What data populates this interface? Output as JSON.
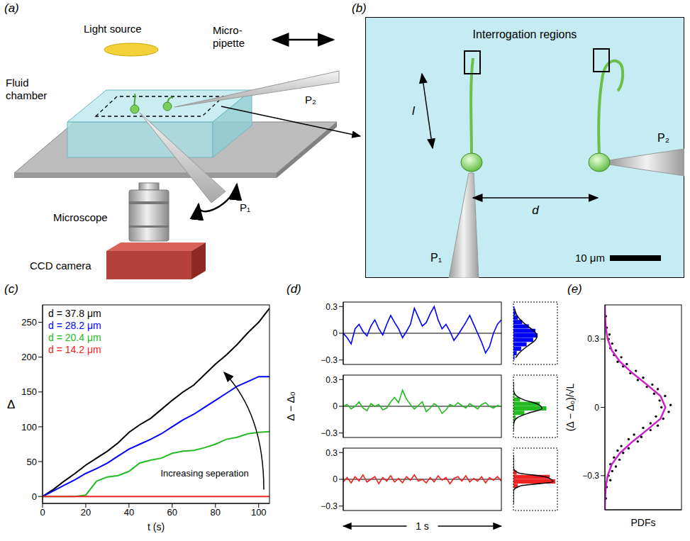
{
  "diagram_a": {
    "label": "(a)",
    "light_source": "Light source",
    "micropipette": [
      "Micro-",
      "pipette"
    ],
    "fluid_chamber": [
      "Fluid",
      "chamber"
    ],
    "pipettes": [
      "P₁",
      "P₂"
    ],
    "microscope": "Microscope",
    "camera": "CCD camera"
  },
  "diagram_b": {
    "label": "(b)",
    "title": "Interrogation regions",
    "length": "l",
    "separation": "d",
    "pipettes": [
      "P₁",
      "P₂"
    ],
    "scale_bar": "10 μm"
  },
  "chart_data": [
    {
      "label": "(c)",
      "type": "line",
      "x_label": "t (s)",
      "y_label": "Δ",
      "x": [
        0,
        5,
        10,
        15,
        20,
        25,
        30,
        35,
        40,
        45,
        50,
        55,
        60,
        65,
        70,
        75,
        80,
        85,
        90,
        95,
        100,
        105
      ],
      "xlim": [
        0,
        105
      ],
      "xticks": [
        0,
        20,
        40,
        60,
        80,
        100
      ],
      "ylim": [
        -10,
        275
      ],
      "yticks": [
        0,
        50,
        100,
        150,
        200,
        250
      ],
      "legend": "upper left",
      "annotation": "Increasing seperation",
      "series": [
        {
          "name": "d = 37.8 μm",
          "color": "#000000",
          "values": [
            0,
            10,
            22,
            33,
            45,
            55,
            65,
            77,
            92,
            103,
            112,
            125,
            138,
            150,
            160,
            175,
            190,
            203,
            218,
            235,
            250,
            270
          ]
        },
        {
          "name": "d = 28.2 μm",
          "color": "#0000ff",
          "values": [
            0,
            8,
            16,
            24,
            33,
            40,
            48,
            58,
            68,
            75,
            82,
            90,
            100,
            110,
            118,
            128,
            138,
            148,
            158,
            165,
            172,
            172
          ]
        },
        {
          "name": "d = 20.4 μm",
          "color": "#22bb22",
          "values": [
            0,
            0,
            0,
            0,
            2,
            22,
            28,
            30,
            36,
            48,
            52,
            55,
            62,
            65,
            66,
            70,
            75,
            82,
            85,
            90,
            92,
            93
          ]
        },
        {
          "name": "d = 14.2 μm",
          "color": "#ee2222",
          "values": [
            0,
            0,
            0,
            0,
            0,
            0,
            0,
            0,
            0,
            0,
            0,
            0,
            0,
            0,
            0,
            0,
            0,
            0,
            0,
            0,
            0,
            0
          ]
        }
      ]
    },
    {
      "label": "(d)",
      "type": "line",
      "y_label": "Δ − Δ₀",
      "x_label": "1 s",
      "tick_labels": "y",
      "x": [
        0,
        0.025,
        0.05,
        0.075,
        0.1,
        0.125,
        0.15,
        0.175,
        0.2,
        0.225,
        0.25,
        0.275,
        0.3,
        0.325,
        0.35,
        0.375,
        0.4,
        0.425,
        0.45,
        0.475,
        0.5,
        0.525,
        0.55,
        0.575,
        0.6,
        0.625,
        0.65,
        0.675,
        0.7,
        0.725,
        0.75,
        0.775,
        0.8,
        0.825,
        0.85,
        0.875,
        0.9,
        0.925,
        0.95,
        0.975,
        1
      ],
      "xlim": [
        0,
        1
      ],
      "ylim": [
        -0.35,
        0.35
      ],
      "yticks": [
        {
          "value": -0.3,
          "label": "−0.3"
        },
        0,
        0.3
      ],
      "series": [
        {
          "color": "#0000ff",
          "values": [
            0,
            -0.05,
            -0.12,
            0.05,
            0.1,
            0.02,
            -0.03,
            0.08,
            0.15,
            0.05,
            -0.02,
            0.1,
            0.2,
            0.12,
            0.05,
            -0.05,
            0.02,
            0.1,
            0.28,
            0.18,
            0.08,
            0.12,
            0.22,
            0.3,
            0.15,
            0.05,
            0.1,
            0.02,
            -0.08,
            -0.02,
            0.05,
            0.12,
            0.2,
            0.1,
            0,
            -0.1,
            -0.22,
            -0.15,
            0,
            0.1,
            0.15
          ],
          "histogram": {
            "tick_labels": false,
            "xlim": [
              0,
              40
            ],
            "bins": [
              -0.3,
              -0.25,
              -0.2,
              -0.15,
              -0.1,
              -0.05,
              0,
              0.05,
              0.1,
              0.15,
              0.2,
              0.25,
              0.3
            ],
            "counts": [
              1,
              2,
              4,
              8,
              14,
              20,
              22,
              18,
              12,
              7,
              3,
              1
            ],
            "fit": [
              1,
              2.3,
              4.6,
              8.5,
              13.5,
              18.5,
              21.5,
              20,
              15,
              9.5,
              5,
              2
            ],
            "fit_color": "#000000"
          }
        },
        {
          "color": "#22bb22",
          "values": [
            0,
            0.02,
            -0.03,
            0,
            0.05,
            -0.02,
            -0.05,
            0.03,
            0,
            0.02,
            -0.04,
            -0.02,
            0.05,
            0.1,
            0.04,
            0.18,
            0.08,
            0.02,
            -0.03,
            0.01,
            0.05,
            -0.06,
            -0.02,
            0.03,
            0,
            -0.08,
            -0.04,
            0.02,
            0,
            0.04,
            0.01,
            -0.02,
            0.03,
            0,
            -0.03,
            0.02,
            0.04,
            0,
            -0.02,
            0.01,
            0
          ],
          "histogram": {
            "tick_labels": false,
            "xlim": [
              0,
              40
            ],
            "bins": [
              -0.3,
              -0.25,
              -0.2,
              -0.15,
              -0.1,
              -0.05,
              0,
              0.05,
              0.1,
              0.15,
              0.2,
              0.25,
              0.3
            ],
            "counts": [
              0,
              0,
              0,
              1,
              6,
              24,
              30,
              10,
              2,
              1,
              0,
              0
            ],
            "fit": [
              0,
              0,
              0.2,
              2,
              9,
              22,
              26,
              14,
              4,
              0.6,
              0,
              0
            ],
            "fit_color": "#000000"
          }
        },
        {
          "color": "#ee2222",
          "values": [
            -0.03,
            0.02,
            -0.04,
            0.03,
            -0.02,
            0.05,
            -0.03,
            0,
            0.03,
            -0.05,
            0.02,
            -0.02,
            0.04,
            -0.03,
            0.01,
            -0.04,
            0.03,
            -0.01,
            0.05,
            -0.02,
            0,
            -0.04,
            0.02,
            -0.03,
            0.04,
            -0.01,
            0.02,
            -0.05,
            0.01,
            0.03,
            -0.02,
            0.04,
            -0.03,
            0.01,
            -0.02,
            0.03,
            -0.04,
            0.02,
            -0.01,
            0.03,
            -0.02
          ],
          "histogram": {
            "tick_labels": false,
            "xlim": [
              0,
              40
            ],
            "bins": [
              -0.3,
              -0.25,
              -0.2,
              -0.15,
              -0.1,
              -0.05,
              0,
              0.05,
              0.1,
              0.15,
              0.2,
              0.25,
              0.3
            ],
            "counts": [
              0,
              0,
              0,
              0,
              3,
              33,
              38,
              4,
              0,
              0,
              0,
              0
            ],
            "fit": [
              0,
              0,
              0,
              0.1,
              4,
              30,
              36,
              6,
              0.2,
              0,
              0,
              0
            ],
            "fit_color": "#000000"
          }
        }
      ]
    },
    {
      "label": "(e)",
      "type": "scatter",
      "y_label": "(Δ − Δ₀)/√L",
      "x_label": "PDFs",
      "tick_labels": "y",
      "xlim": [
        0,
        4.2
      ],
      "xticks": [],
      "ylim": [
        -0.45,
        0.45
      ],
      "yticks": [
        {
          "value": -0.3,
          "label": "−0.3"
        },
        0,
        0.3
      ],
      "series": [
        {
          "type": "scatter",
          "color": "#000000",
          "x": [
            0.05,
            0.1,
            0.3,
            0.2,
            0.4,
            0.6,
            0.3,
            0.8,
            0.5,
            1.0,
            0.7,
            1.3,
            0.9,
            1.8,
            1.3,
            2.0,
            1.6,
            2.5,
            2.1,
            2.9,
            2.5,
            3.2,
            2.8,
            3.5,
            3.1,
            3.6,
            3.0,
            3.3,
            2.7,
            2.9,
            2.3,
            2.6,
            1.8,
            2.1,
            1.4,
            1.7,
            1.0,
            1.2,
            0.7,
            0.9,
            0.5,
            0.6,
            0.3,
            0.4,
            0.2,
            0.25,
            0.1,
            0.05
          ],
          "values": [
            -0.4,
            -0.35,
            -0.32,
            -0.3,
            -0.28,
            -0.26,
            -0.25,
            -0.23,
            -0.22,
            -0.2,
            -0.19,
            -0.18,
            -0.17,
            -0.15,
            -0.14,
            -0.13,
            -0.12,
            -0.1,
            -0.09,
            -0.08,
            -0.07,
            -0.05,
            -0.04,
            -0.02,
            0,
            0.01,
            0.03,
            0.05,
            0.06,
            0.08,
            0.09,
            0.1,
            0.12,
            0.13,
            0.15,
            0.16,
            0.18,
            0.19,
            0.2,
            0.22,
            0.23,
            0.25,
            0.26,
            0.28,
            0.3,
            0.32,
            0.35,
            0.4
          ]
        },
        {
          "type": "line",
          "color": "#cc22cc",
          "x": [
            0,
            0.01,
            0.05,
            0.15,
            0.38,
            0.83,
            1.52,
            2.3,
            3.05,
            3.32,
            3.05,
            2.3,
            1.52,
            0.83,
            0.38,
            0.15,
            0.05,
            0.01,
            0
          ],
          "values": [
            -0.45,
            -0.4,
            -0.35,
            -0.3,
            -0.25,
            -0.2,
            -0.15,
            -0.1,
            -0.05,
            0,
            0.05,
            0.1,
            0.15,
            0.2,
            0.25,
            0.3,
            0.35,
            0.4,
            0.45
          ]
        }
      ]
    }
  ]
}
